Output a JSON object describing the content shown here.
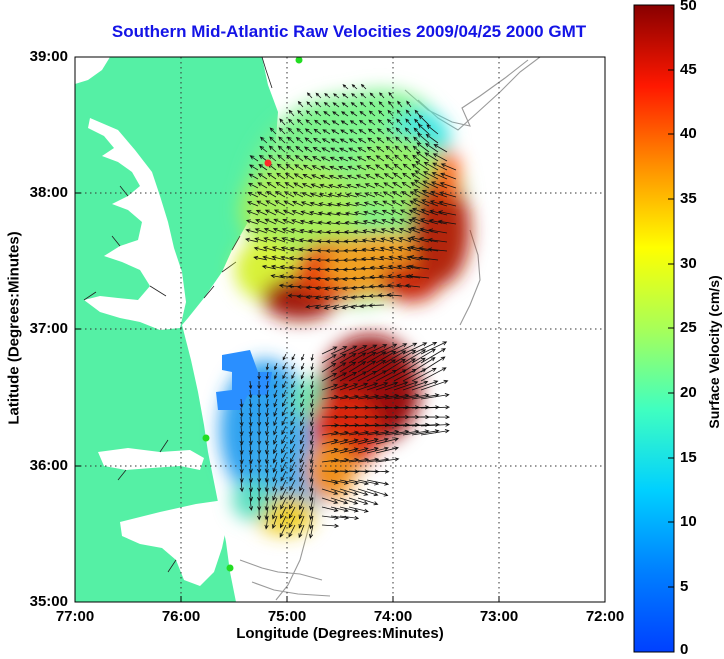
{
  "title": "Southern Mid-Atlantic Raw Velocities 2009/04/25 2000 GMT",
  "chart_data": {
    "type": "heatmap",
    "title": "Southern Mid-Atlantic Raw Velocities 2009/04/25 2000 GMT",
    "xlabel": "Longitude (Degrees:Minutes)",
    "ylabel": "Latitude (Degrees:Minutes)",
    "x_ticks": [
      "77:00",
      "76:00",
      "75:00",
      "74:00",
      "73:00",
      "72:00"
    ],
    "y_ticks": [
      "39:00",
      "38:00",
      "37:00",
      "36:00",
      "35:00"
    ],
    "xlim": [
      -77,
      -72
    ],
    "ylim": [
      35,
      39
    ],
    "colorbar": {
      "label": "Surface Velocity (cm/s)",
      "ticks": [
        "50",
        "45",
        "40",
        "35",
        "30",
        "25",
        "20",
        "15",
        "10",
        "5",
        "0"
      ],
      "range": [
        0,
        50
      ]
    },
    "grid": true
  },
  "colors": {
    "title": "#1414e6",
    "land": "#55f0a5",
    "water": "#ffffff",
    "bathymetry": "#9a9a9a",
    "stations": "#22dd22",
    "station_highlight": "#ff2a2a"
  }
}
